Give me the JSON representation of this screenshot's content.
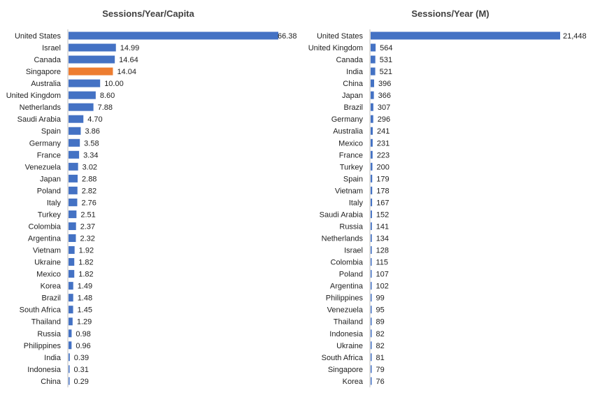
{
  "chart_data": [
    {
      "type": "bar",
      "orientation": "horizontal",
      "title": "Sessions/Year/Capita",
      "xlim": [
        0,
        66.38
      ],
      "grid": false,
      "legend": "none",
      "categories": [
        "United States",
        "Israel",
        "Canada",
        "Singapore",
        "Australia",
        "United Kingdom",
        "Netherlands",
        "Saudi Arabia",
        "Spain",
        "Germany",
        "France",
        "Venezuela",
        "Japan",
        "Poland",
        "Italy",
        "Turkey",
        "Colombia",
        "Argentina",
        "Vietnam",
        "Ukraine",
        "Mexico",
        "Korea",
        "Brazil",
        "South Africa",
        "Thailand",
        "Russia",
        "Philippines",
        "India",
        "Indonesia",
        "China"
      ],
      "values": [
        66.38,
        14.99,
        14.64,
        14.04,
        10.0,
        8.6,
        7.88,
        4.7,
        3.86,
        3.58,
        3.34,
        3.02,
        2.88,
        2.82,
        2.76,
        2.51,
        2.37,
        2.32,
        1.92,
        1.82,
        1.82,
        1.49,
        1.48,
        1.45,
        1.29,
        0.98,
        0.96,
        0.39,
        0.31,
        0.29
      ],
      "labels": [
        "66.38",
        "14.99",
        "14.64",
        "14.04",
        "10.00",
        "8.60",
        "7.88",
        "4.70",
        "3.86",
        "3.58",
        "3.34",
        "3.02",
        "2.88",
        "2.82",
        "2.76",
        "2.51",
        "2.37",
        "2.32",
        "1.92",
        "1.82",
        "1.82",
        "1.49",
        "1.48",
        "1.45",
        "1.29",
        "0.98",
        "0.96",
        "0.39",
        "0.31",
        "0.29"
      ],
      "highlight": "Singapore"
    },
    {
      "type": "bar",
      "orientation": "horizontal",
      "title": "Sessions/Year (M)",
      "xlim": [
        0,
        21448
      ],
      "grid": false,
      "legend": "none",
      "categories": [
        "United States",
        "United Kingdom",
        "Canada",
        "India",
        "China",
        "Japan",
        "Brazil",
        "Germany",
        "Australia",
        "Mexico",
        "France",
        "Turkey",
        "Spain",
        "Vietnam",
        "Italy",
        "Saudi Arabia",
        "Russia",
        "Netherlands",
        "Israel",
        "Colombia",
        "Poland",
        "Argentina",
        "Philippines",
        "Venezuela",
        "Thailand",
        "Indonesia",
        "Ukraine",
        "South Africa",
        "Singapore",
        "Korea"
      ],
      "values": [
        21448,
        564,
        531,
        521,
        396,
        366,
        307,
        296,
        241,
        231,
        223,
        200,
        179,
        178,
        167,
        152,
        141,
        134,
        128,
        115,
        107,
        102,
        99,
        95,
        89,
        82,
        82,
        81,
        79,
        76
      ],
      "labels": [
        "21,448",
        "564",
        "531",
        "521",
        "396",
        "366",
        "307",
        "296",
        "241",
        "231",
        "223",
        "200",
        "179",
        "178",
        "167",
        "152",
        "141",
        "134",
        "128",
        "115",
        "107",
        "102",
        "99",
        "95",
        "89",
        "82",
        "82",
        "81",
        "79",
        "76"
      ],
      "highlight": null
    }
  ],
  "colors": {
    "bar": "#4472C4",
    "highlight": "#ED7D31",
    "axis": "#BFBFBF",
    "text": "#222222",
    "title": "#404040"
  }
}
